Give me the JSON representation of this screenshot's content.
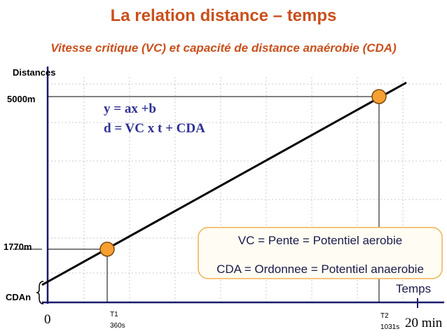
{
  "header": {
    "title": "La relation distance – temps",
    "subtitle": "Vitesse critique (VC) et capacité de distance anaérobie (CDA)"
  },
  "axes": {
    "y_label": "Distances",
    "x_label": "Temps",
    "x_origin": "0",
    "x_end": "20 min"
  },
  "y_marks": [
    "5000m",
    "1770m",
    "CDAn"
  ],
  "x_marks": [
    {
      "name": "T1",
      "time": "360s"
    },
    {
      "name": "T2",
      "time": "1031s"
    }
  ],
  "equations": [
    "y = ax +b",
    "d = VC x t + CDA"
  ],
  "box": [
    "VC = Pente = Potentiel aerobie",
    "CDA = Ordonnee = Potentiel anaerobie"
  ]
}
